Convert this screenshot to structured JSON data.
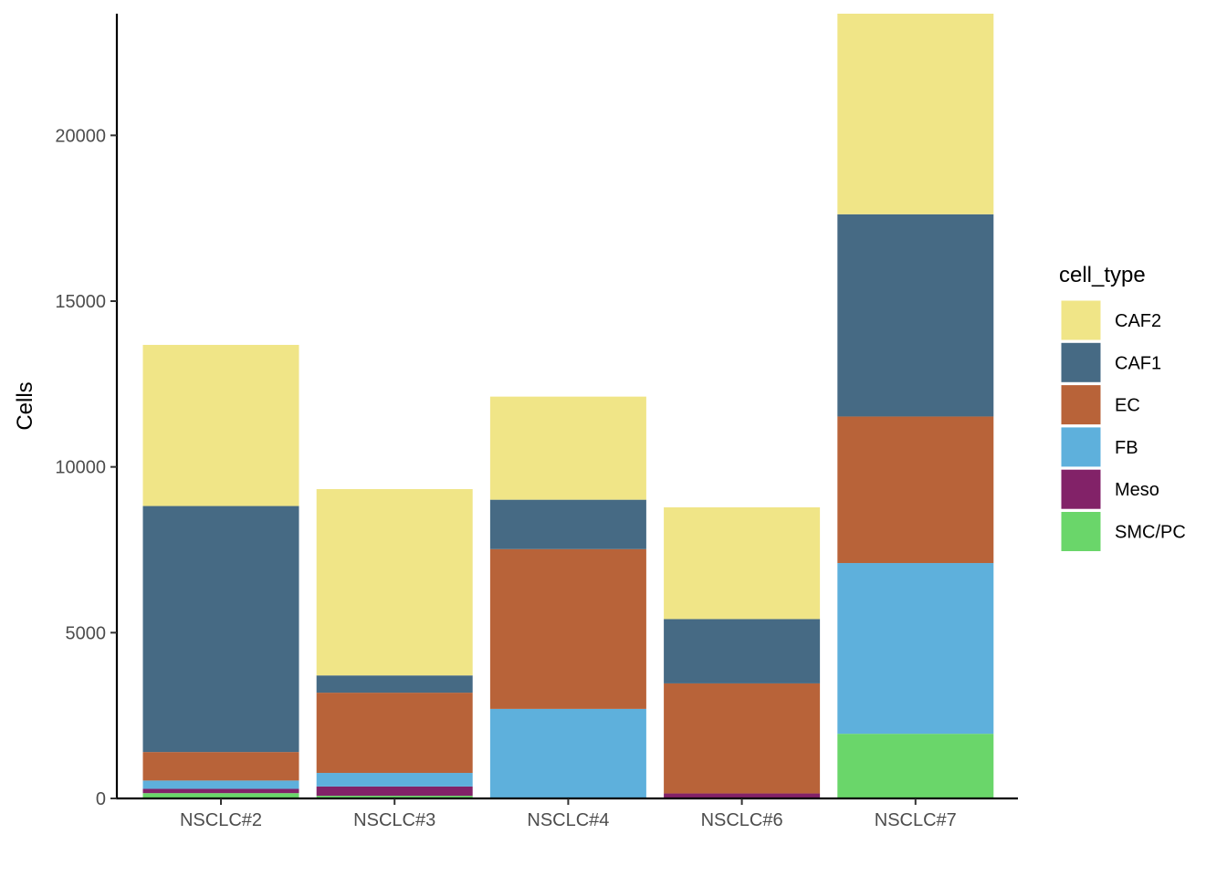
{
  "chart_data": {
    "type": "bar",
    "stacked": true,
    "categories": [
      "NSCLC#2",
      "NSCLC#3",
      "NSCLC#4",
      "NSCLC#6",
      "NSCLC#7"
    ],
    "series": [
      {
        "name": "SMC/PC",
        "color": "#6AD66A",
        "values": [
          160,
          80,
          0,
          0,
          1950
        ]
      },
      {
        "name": "Meso",
        "color": "#822268",
        "values": [
          130,
          280,
          0,
          150,
          0
        ]
      },
      {
        "name": "FB",
        "color": "#5EB0DC",
        "values": [
          250,
          410,
          2700,
          0,
          5150
        ]
      },
      {
        "name": "EC",
        "color": "#B86339",
        "values": [
          860,
          2420,
          4820,
          3320,
          4420
        ]
      },
      {
        "name": "CAF1",
        "color": "#466A84",
        "values": [
          7420,
          520,
          1490,
          1940,
          6100
        ]
      },
      {
        "name": "CAF2",
        "color": "#F0E587",
        "values": [
          4860,
          5620,
          3110,
          3370,
          6050
        ]
      }
    ],
    "legend_order": [
      "CAF2",
      "CAF1",
      "EC",
      "FB",
      "Meso",
      "SMC/PC"
    ],
    "ylabel": "Cells",
    "xlabel": "",
    "yticks": [
      0,
      5000,
      10000,
      15000,
      20000
    ],
    "ylim": [
      0,
      23670
    ],
    "grid": false,
    "legend": {
      "title": "cell_type",
      "placement": "right"
    }
  }
}
